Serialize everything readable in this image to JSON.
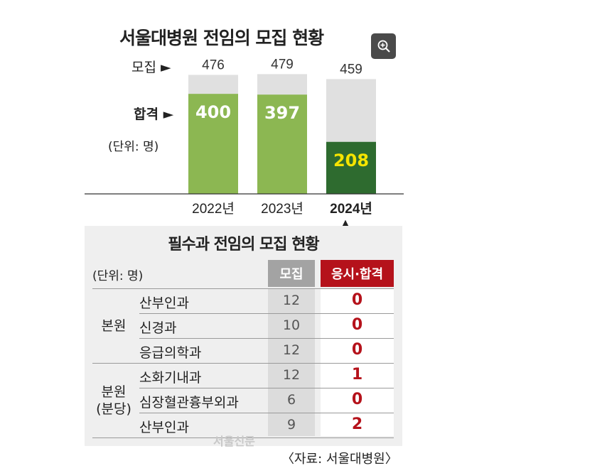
{
  "chart_data": {
    "type": "bar",
    "title": "서울대병원 전임의 모집 현황",
    "unit": "(단위: 명)",
    "categories": [
      "2022년",
      "2023년",
      "2024년"
    ],
    "series": [
      {
        "name": "모집",
        "values": [
          476,
          479,
          459
        ]
      },
      {
        "name": "합격",
        "values": [
          400,
          397,
          208
        ]
      }
    ],
    "row_labels": {
      "recruit": "모집 ►",
      "pass": "합격 ►"
    },
    "highlight_category": "2024년",
    "highlight_marker": "▲",
    "colors": {
      "background_bar": "#e0e0e0",
      "pass_bar": "#8cb752",
      "pass_bar_highlight": "#2e6b2f",
      "highlight_value": "#f5e400"
    },
    "ylim": [
      0,
      500
    ]
  },
  "table": {
    "title": "필수과 전임의 모집 현황",
    "unit": "(단위: 명)",
    "headers": {
      "recruit": "모집",
      "pass": "응시·합격"
    },
    "groups": [
      {
        "label_lines": [
          "본원"
        ],
        "rows": [
          {
            "dept": "산부인과",
            "recruit": "12",
            "pass": "0"
          },
          {
            "dept": "신경과",
            "recruit": "10",
            "pass": "0"
          },
          {
            "dept": "응급의학과",
            "recruit": "12",
            "pass": "0"
          }
        ]
      },
      {
        "label_lines": [
          "분원",
          "(분당)"
        ],
        "rows": [
          {
            "dept": "소화기내과",
            "recruit": "12",
            "pass": "1"
          },
          {
            "dept": "심장혈관흉부외과",
            "recruit": "6",
            "pass": "0"
          },
          {
            "dept": "산부인과",
            "recruit": "9",
            "pass": "2"
          }
        ]
      }
    ]
  },
  "watermark": "서울신문",
  "source": "〈자료: 서울대병원〉",
  "icons": {
    "zoom": "zoom-in-icon"
  }
}
